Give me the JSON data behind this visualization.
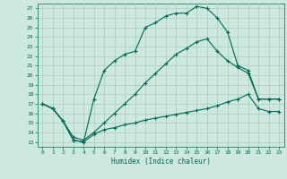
{
  "title": "",
  "xlabel": "Humidex (Indice chaleur)",
  "bg_color": "#cce8df",
  "grid_color": "#aaccbb",
  "line_color": "#006655",
  "xlim": [
    -0.5,
    23.5
  ],
  "ylim": [
    12.5,
    27.5
  ],
  "yticks": [
    13,
    14,
    15,
    16,
    17,
    18,
    19,
    20,
    21,
    22,
    23,
    24,
    25,
    26,
    27
  ],
  "xticks": [
    0,
    1,
    2,
    3,
    4,
    5,
    6,
    7,
    8,
    9,
    10,
    11,
    12,
    13,
    14,
    15,
    16,
    17,
    18,
    19,
    20,
    21,
    22,
    23
  ],
  "line1_x": [
    0,
    1,
    2,
    3,
    4,
    5,
    6,
    7,
    8,
    9,
    10,
    11,
    12,
    13,
    14,
    15,
    16,
    17,
    18,
    19,
    20,
    21,
    22,
    23
  ],
  "line1_y": [
    17.0,
    16.5,
    15.2,
    13.2,
    13.0,
    17.5,
    20.5,
    21.5,
    22.2,
    22.5,
    25.0,
    25.5,
    26.2,
    26.5,
    26.5,
    27.2,
    27.0,
    26.0,
    24.5,
    21.0,
    20.5,
    17.5,
    17.5,
    17.5
  ],
  "line2_x": [
    0,
    1,
    2,
    3,
    4,
    5,
    6,
    7,
    8,
    9,
    10,
    11,
    12,
    13,
    14,
    15,
    16,
    17,
    18,
    19,
    20,
    21,
    22,
    23
  ],
  "line2_y": [
    17.0,
    16.5,
    15.2,
    13.5,
    13.2,
    14.0,
    15.0,
    16.0,
    17.0,
    18.0,
    19.2,
    20.2,
    21.2,
    22.2,
    22.8,
    23.5,
    23.8,
    22.5,
    21.5,
    20.8,
    20.2,
    17.5,
    17.5,
    17.5
  ],
  "line3_x": [
    0,
    1,
    2,
    3,
    4,
    5,
    6,
    7,
    8,
    9,
    10,
    11,
    12,
    13,
    14,
    15,
    16,
    17,
    18,
    19,
    20,
    21,
    22,
    23
  ],
  "line3_y": [
    17.0,
    16.5,
    15.2,
    13.2,
    13.0,
    13.8,
    14.3,
    14.5,
    14.8,
    15.0,
    15.3,
    15.5,
    15.7,
    15.9,
    16.1,
    16.3,
    16.5,
    16.8,
    17.2,
    17.5,
    18.0,
    16.5,
    16.2,
    16.2
  ]
}
